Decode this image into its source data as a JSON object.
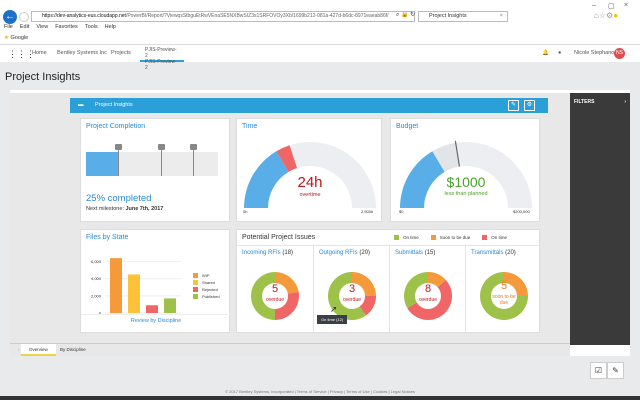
{
  "browser": {
    "url_host": "https://dev-analytics-eus.cloudapp.net",
    "url_path": "/PowerBI/Report/?ViewqsStbguEtRwVEnaSE5NXBwSIZ3s1SRFOVOy3Xb/1699b212-081a-427d-b6dc-8971eaeab86f/",
    "tab_title": "Project Insights",
    "menu": [
      "File",
      "Edit",
      "View",
      "Favorites",
      "Tools",
      "Help"
    ],
    "favorite": "Google"
  },
  "nav": {
    "items": [
      "Home",
      "Bentley Systems Inc",
      "Projects"
    ],
    "project": "PJIS-Preview-2",
    "project_sub": "PJIS-Preview-2",
    "user": "Nicole Stephano",
    "initials": "NS"
  },
  "page_title": "Project Insights",
  "report": {
    "header": "Project Insights",
    "filters": "FILTERS"
  },
  "completion": {
    "title": "Project Completion",
    "percent": 25,
    "label": "25% completed",
    "milestone_prefix": "Next milestone: ",
    "milestone": "June 7th, 2017",
    "markers": [
      0.24,
      0.57,
      0.81
    ]
  },
  "time": {
    "title": "Time",
    "value": "24h",
    "sub": "overtime",
    "min": "0h",
    "max": "2,500h",
    "fill": 0.33,
    "over": 0.07,
    "colors": {
      "fill": "#5aaee8",
      "over": "#f06565"
    }
  },
  "budget": {
    "title": "Budget",
    "value": "$1000",
    "sub": "less than planned",
    "min": "$0",
    "max": "$200,000",
    "fill": 0.33,
    "planned": 0.45,
    "colors": {
      "fill": "#5aaee8"
    }
  },
  "files": {
    "title": "Files by State",
    "link": "Review by Discipline",
    "chart_data": {
      "type": "bar",
      "categories": [
        "WIP",
        "Shared",
        "Rejected",
        "Published"
      ],
      "values": [
        6400,
        4500,
        900,
        1700
      ],
      "ylim": [
        0,
        7000
      ],
      "ticks": [
        "0",
        "2,000",
        "4,000",
        "6,000"
      ],
      "colors": [
        "#f59a3a",
        "#fbc23a",
        "#f06565",
        "#9ec14a"
      ]
    }
  },
  "issues": {
    "title": "Potential Project Issues",
    "legend": [
      {
        "label": "On time",
        "color": "#9ec14a"
      },
      {
        "label": "Soon to be due",
        "color": "#f59a3a"
      },
      {
        "label": "On time",
        "color": "#f06565"
      }
    ],
    "cards": [
      {
        "title": "Incoming RFIs",
        "count": "(18)",
        "big": "5",
        "sub": "overdue",
        "ontime": 9,
        "soon": 4,
        "overdue": 5
      },
      {
        "title": "Outgoing RFIs",
        "count": "(20)",
        "big": "3",
        "sub": "overdue",
        "ontime": 12,
        "soon": 5,
        "overdue": 3
      },
      {
        "title": "Submittals",
        "count": "(15)",
        "big": "8",
        "sub": "overdue",
        "ontime": 5,
        "soon": 2,
        "overdue": 8
      },
      {
        "title": "Transmittals",
        "count": "(20)",
        "big": "5",
        "sub": "soon to be due",
        "ontime": 15,
        "soon": 5,
        "overdue": 0
      }
    ],
    "tooltip": "On time  (12)"
  },
  "tabs": [
    "Overview",
    "By Discipline"
  ],
  "footer": "© 2017 Bentley Systems, Incorporated | Terms of Service | Privacy | Terms of Use | Cookies | Legal Notices"
}
